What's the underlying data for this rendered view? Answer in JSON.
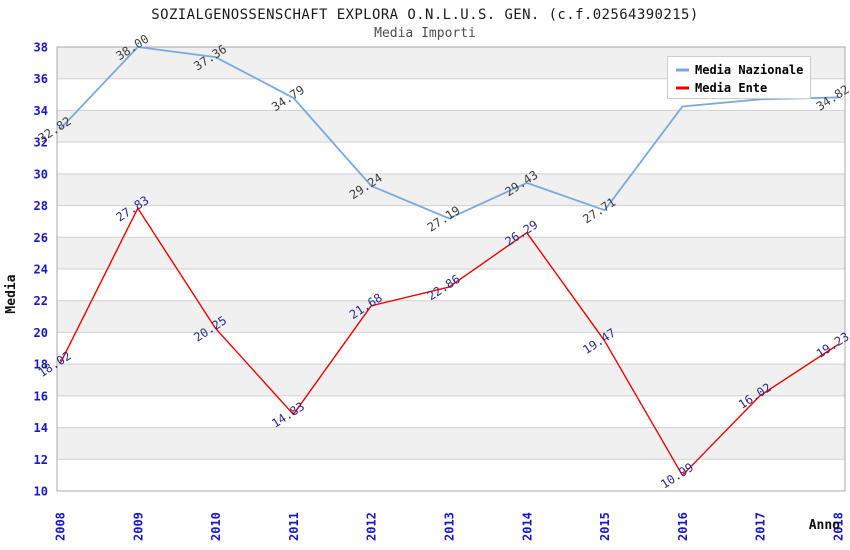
{
  "header": {
    "title": "SOZIALGENOSSENSCHAFT EXPLORA O.N.L.U.S. GEN. (c.f.02564390215)",
    "subtitle": "Media Importi"
  },
  "chart_data": {
    "type": "line",
    "title": "SOZIALGENOSSENSCHAFT EXPLORA O.N.L.U.S. GEN. (c.f.02564390215)",
    "subtitle": "Media Importi",
    "xlabel": "Anno",
    "ylabel": "Media",
    "categories": [
      "2008",
      "2009",
      "2010",
      "2011",
      "2012",
      "2013",
      "2014",
      "2015",
      "2016",
      "2017",
      "2018"
    ],
    "ylim": [
      10,
      38
    ],
    "ytick_step": 2,
    "grid": true,
    "band_fill": "alternating horizontal bands every 2 units",
    "legend_position": "top-right",
    "series": [
      {
        "name": "Media Nazionale",
        "color": "#79aade",
        "label_color": "#3c3c44",
        "values": [
          32.82,
          38.0,
          37.36,
          34.79,
          29.24,
          27.19,
          29.43,
          27.71,
          34.25,
          34.7,
          34.82
        ],
        "labels": [
          "32.82",
          "38.00",
          "37.36",
          "34.79",
          "29.24",
          "27.19",
          "29.43",
          "27.71",
          "",
          "",
          "34.82"
        ],
        "note_2016_2017": "points visible, value labels occluded by legend box; values estimated from gridlines"
      },
      {
        "name": "Media Ente",
        "color": "#ee0000",
        "label_color": "#2b2b8c",
        "values": [
          18.02,
          27.83,
          20.25,
          14.83,
          21.68,
          22.86,
          26.29,
          19.47,
          10.99,
          16.02,
          19.23
        ],
        "labels": [
          "18.02",
          "27.83",
          "20.25",
          "14.83",
          "21.68",
          "22.86",
          "26.29",
          "19.47",
          "10.99",
          "16.02",
          "19.23"
        ]
      }
    ],
    "colors": {
      "axis_text": "#1616cc",
      "band_gray": "#f0f0f0",
      "grid_line": "#d0d0d0",
      "plot_border": "#a8a8a8",
      "background": "#ffffff"
    }
  }
}
